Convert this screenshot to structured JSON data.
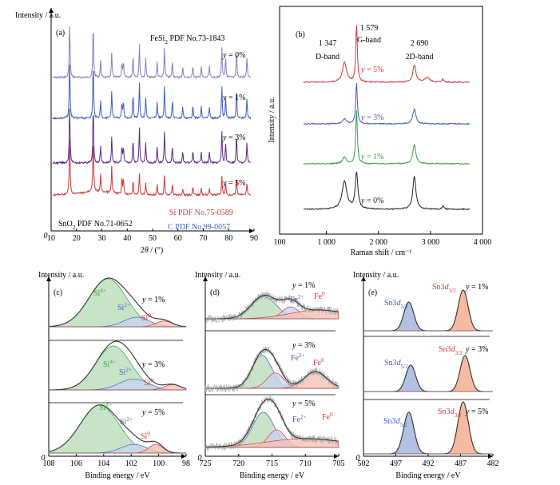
{
  "colors": {
    "axis": "#000000",
    "purple_light": "#8b7bc4",
    "blue": "#3d5fb6",
    "purple_dark": "#5a2a82",
    "red": "#d2383a",
    "green": "#3a9d47",
    "black": "#222222",
    "si4_fill": "#bcdcbc",
    "si2_fill": "#c9d3ec",
    "si0_fill": "#f5c2b4",
    "fe_fill": "#f5c2b4",
    "sn_blue_fill": "#9fb0dc",
    "sn_red_fill": "#f4a98c",
    "envelope": "#333333",
    "noise": "#aaaaaa"
  },
  "chart_data": [
    {
      "panel": "(a)",
      "type": "line",
      "ylabel": "Intensity / a.u.",
      "xlabel_pre": "2",
      "xlabel_var": "θ",
      "xlabel_post": " / (°)",
      "xlim": [
        10,
        90
      ],
      "xticks": [
        "10",
        "20",
        "30",
        "40",
        "50",
        "60",
        "70",
        "80",
        "90"
      ],
      "y_zero": "0",
      "annotations": {
        "fesi2_pre": "FeSi",
        "fesi2_sub": "2",
        "fesi2_post": " PDF No.73-1843",
        "si": "Si PDF No.75-0589",
        "sno2_pre": "SnO",
        "sno2_sub": "2",
        "sno2_post": " PDF No.71-0652",
        "c": "C PDF No.99-0057"
      },
      "peaks_2theta": [
        17.3,
        26.6,
        29.5,
        33.9,
        37.9,
        38.5,
        42.3,
        44.8,
        47.3,
        51.8,
        54.7,
        57.8,
        61.9,
        65.9,
        69.2,
        72.4,
        77.3,
        78.8,
        83.1,
        87.2
      ],
      "series": [
        {
          "name_var": "y",
          "name_rest": " = 0%",
          "color_key": "purple_light"
        },
        {
          "name_var": "y",
          "name_rest": " = 1%",
          "color_key": "blue"
        },
        {
          "name_var": "y",
          "name_rest": " = 3%",
          "color_key": "purple_dark"
        },
        {
          "name_var": "y",
          "name_rest": " = 5%",
          "color_key": "red"
        }
      ]
    },
    {
      "panel": "(b)",
      "type": "line",
      "ylabel": "Intensity / a.u.",
      "xlabel": "Raman shift / cm⁻¹",
      "xlim": [
        100,
        4000
      ],
      "xticks": [
        "100",
        "1 000",
        "2 000",
        "3 000",
        "4 000"
      ],
      "xtick_values": [
        100,
        1000,
        2000,
        3000,
        4000
      ],
      "bands": [
        {
          "pos": "1 347",
          "name": "D-band",
          "x": 1347
        },
        {
          "pos": "1 579",
          "name": "G-band",
          "x": 1579
        },
        {
          "pos": "2 690",
          "name": "2D-band",
          "x": 2690
        }
      ],
      "series": [
        {
          "name_var": "y",
          "name_rest": " = 5%",
          "color_key": "red",
          "d_ratio": 0.35,
          "g_ratio": 1.0,
          "d2_ratio": 0.3
        },
        {
          "name_var": "y",
          "name_rest": " = 3%",
          "color_key": "blue",
          "d_ratio": 0.12,
          "g_ratio": 1.0,
          "d2_ratio": 0.35
        },
        {
          "name_var": "y",
          "name_rest": " = 1%",
          "color_key": "green",
          "d_ratio": 0.12,
          "g_ratio": 1.0,
          "d2_ratio": 0.35
        },
        {
          "name_var": "y",
          "name_rest": " = 0%",
          "color_key": "black",
          "d_ratio": 0.55,
          "g_ratio": 0.72,
          "d2_ratio": 0.65
        }
      ]
    },
    {
      "panel": "(c)",
      "type": "line",
      "ylabel": "Intensity / a.u.",
      "xlabel": "Binding energy / eV",
      "xlim": [
        108,
        98
      ],
      "xticks": [
        "108",
        "106",
        "104",
        "102",
        "100",
        "98"
      ],
      "xtick_values": [
        108,
        106,
        104,
        102,
        100,
        98
      ],
      "series": [
        {
          "label_var": "y",
          "label_rest": " = 1%",
          "peaks": [
            {
              "label": "Si",
              "sup": "4+",
              "center": 103.7,
              "height": 1.0,
              "fwhm": 3.2,
              "fill_key": "si4_fill",
              "label_color": "green"
            },
            {
              "label": "Si",
              "sup": "2+",
              "center": 101.6,
              "height": 0.2,
              "fwhm": 2.2,
              "fill_key": "si2_fill",
              "label_color": "blue"
            },
            {
              "label": "Si",
              "sup": "0",
              "center": 99.6,
              "height": 0.12,
              "fwhm": 1.4,
              "fill_key": "si0_fill",
              "label_color": "red"
            }
          ]
        },
        {
          "label_var": "y",
          "label_rest": " = 3%",
          "peaks": [
            {
              "label": "Si",
              "sup": "4+",
              "center": 103.3,
              "height": 1.0,
              "fwhm": 3.0,
              "fill_key": "si4_fill",
              "label_color": "green"
            },
            {
              "label": "Si",
              "sup": "2+",
              "center": 101.8,
              "height": 0.25,
              "fwhm": 2.5,
              "fill_key": "si2_fill",
              "label_color": "blue"
            },
            {
              "label": "Si",
              "sup": "0",
              "center": 99.0,
              "height": 0.12,
              "fwhm": 1.4,
              "fill_key": "si0_fill",
              "label_color": "red"
            }
          ]
        },
        {
          "label_var": "y",
          "label_rest": " = 5%",
          "peaks": [
            {
              "label": "Si",
              "sup": "4+",
              "center": 104.3,
              "height": 1.0,
              "fwhm": 3.3,
              "fill_key": "si4_fill",
              "label_color": "green"
            },
            {
              "label": "Si",
              "sup": "2+",
              "center": 101.8,
              "height": 0.18,
              "fwhm": 2.2,
              "fill_key": "si2_fill",
              "label_color": "blue"
            },
            {
              "label": "Si",
              "sup": "0",
              "center": 100.2,
              "height": 0.18,
              "fwhm": 1.2,
              "fill_key": "si0_fill",
              "label_color": "red"
            }
          ]
        }
      ]
    },
    {
      "panel": "(d)",
      "type": "line",
      "ylabel": "Intensity / a.u.",
      "xlabel": "Binding energy / eV",
      "xlim": [
        725,
        705
      ],
      "xticks": [
        "725",
        "720",
        "715",
        "710",
        "705"
      ],
      "xtick_values": [
        725,
        720,
        715,
        710,
        705
      ],
      "series": [
        {
          "label_var": "y",
          "label_rest": " = 1%",
          "peaks": [
            {
              "label": "Fe",
              "sup": "2+",
              "center": 716.2,
              "height": 0.55,
              "fwhm": 4.5,
              "fill_key": "si4_fill",
              "label_color": "blue"
            },
            {
              "label": "Fe",
              "sup": "0",
              "center": 712.2,
              "height": 0.3,
              "fwhm": 3.0,
              "fill_key": "si2_fill",
              "label_color": "red"
            },
            {
              "label": "",
              "sup": "",
              "center": 708.0,
              "height": 0.22,
              "fwhm": 10.0,
              "fill_key": "fe_fill",
              "label_color": "red"
            }
          ]
        },
        {
          "label_var": "y",
          "label_rest": " = 3%",
          "peaks": [
            {
              "label": "Fe",
              "sup": "2+",
              "center": 716.5,
              "height": 0.75,
              "fwhm": 3.5,
              "fill_key": "si4_fill",
              "label_color": "blue"
            },
            {
              "label": "Fe",
              "sup": "0",
              "center": 714.5,
              "height": 0.35,
              "fwhm": 3.0,
              "fill_key": "si2_fill",
              "label_color": "red"
            },
            {
              "label": "",
              "sup": "",
              "center": 708.5,
              "height": 0.38,
              "fwhm": 4.0,
              "fill_key": "fe_fill",
              "label_color": "red"
            }
          ]
        },
        {
          "label_var": "y",
          "label_rest": " = 5%",
          "peaks": [
            {
              "label": "Fe",
              "sup": "2+",
              "center": 716.3,
              "height": 0.8,
              "fwhm": 3.8,
              "fill_key": "si4_fill",
              "label_color": "blue"
            },
            {
              "label": "Fe",
              "sup": "0",
              "center": 714.3,
              "height": 0.4,
              "fwhm": 3.0,
              "fill_key": "si2_fill",
              "label_color": "red"
            },
            {
              "label": "",
              "sup": "",
              "center": 710.0,
              "height": 0.2,
              "fwhm": 14.0,
              "fill_key": "fe_fill",
              "label_color": "red"
            }
          ]
        }
      ]
    },
    {
      "panel": "(e)",
      "type": "line",
      "ylabel": "Intensity / a.u.",
      "xlabel": "Binding energy / eV",
      "xlim": [
        502,
        482
      ],
      "xticks": [
        "502",
        "497",
        "492",
        "487",
        "482"
      ],
      "xtick_values": [
        502,
        497,
        492,
        487,
        482
      ],
      "series": [
        {
          "label_var": "y",
          "label_rest": " = 1%",
          "peaks": [
            {
              "label": "Sn3",
              "sub_it": "d",
              "sub": "5/2",
              "center": 495.0,
              "height": 0.6,
              "fwhm": 1.8,
              "fill_key": "sn_blue_fill",
              "label_color": "blue"
            },
            {
              "label": "Sn3",
              "sub_it": "d",
              "sub": "3/2",
              "center": 486.6,
              "height": 0.85,
              "fwhm": 1.8,
              "fill_key": "sn_red_fill",
              "label_color": "red"
            }
          ]
        },
        {
          "label_var": "y",
          "label_rest": " = 3%",
          "peaks": [
            {
              "label": "Sn3",
              "sub_it": "d",
              "sub": "5/2",
              "center": 494.7,
              "height": 0.55,
              "fwhm": 1.8,
              "fill_key": "sn_blue_fill",
              "label_color": "blue"
            },
            {
              "label": "Sn3",
              "sub_it": "d",
              "sub": "3/2",
              "center": 486.3,
              "height": 0.75,
              "fwhm": 1.8,
              "fill_key": "sn_red_fill",
              "label_color": "red"
            }
          ]
        },
        {
          "label_var": "y",
          "label_rest": " = 5%",
          "peaks": [
            {
              "label": "Sn3",
              "sub_it": "d",
              "sub": "5/2",
              "center": 495.0,
              "height": 0.8,
              "fwhm": 1.9,
              "fill_key": "sn_blue_fill",
              "label_color": "blue"
            },
            {
              "label": "Sn3",
              "sub_it": "d",
              "sub": "3/2",
              "center": 486.6,
              "height": 1.0,
              "fwhm": 1.9,
              "fill_key": "sn_red_fill",
              "label_color": "red"
            }
          ]
        }
      ]
    }
  ]
}
